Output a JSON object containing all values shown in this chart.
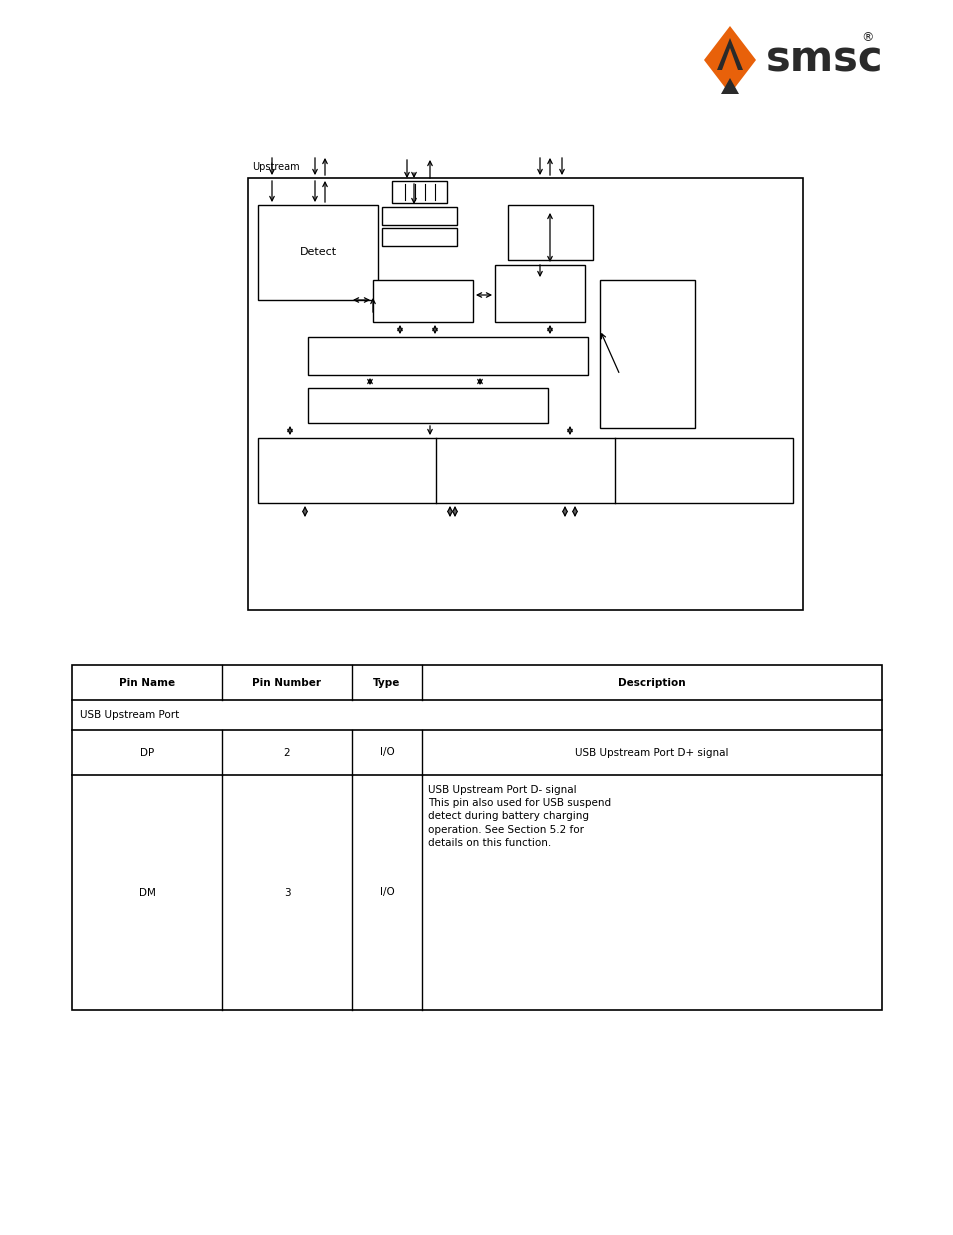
{
  "background_color": "#ffffff",
  "logo_text": "smsc",
  "upstream_label": "Upstream",
  "detect_label": "Detect",
  "table_headers": [
    "Pin Name",
    "Pin Number",
    "Type",
    "Description"
  ],
  "table_row1_span": "USB Upstream Port",
  "table_row2": [
    "DP",
    "2",
    "I/O",
    "USB Upstream Port D+ signal"
  ],
  "table_row3_col1": "DM",
  "table_row3_col2": "3",
  "table_row3_col3": "I/O",
  "table_row3_desc": "USB Upstream Port D- signal\nThis pin also used for USB suspend\ndetect during battery charging\noperation. See Section 5.2 for\ndetails on this function.",
  "logo_orange": "#E8610A",
  "logo_dark": "#2a2a2a",
  "text_color": "#1a1a1a"
}
